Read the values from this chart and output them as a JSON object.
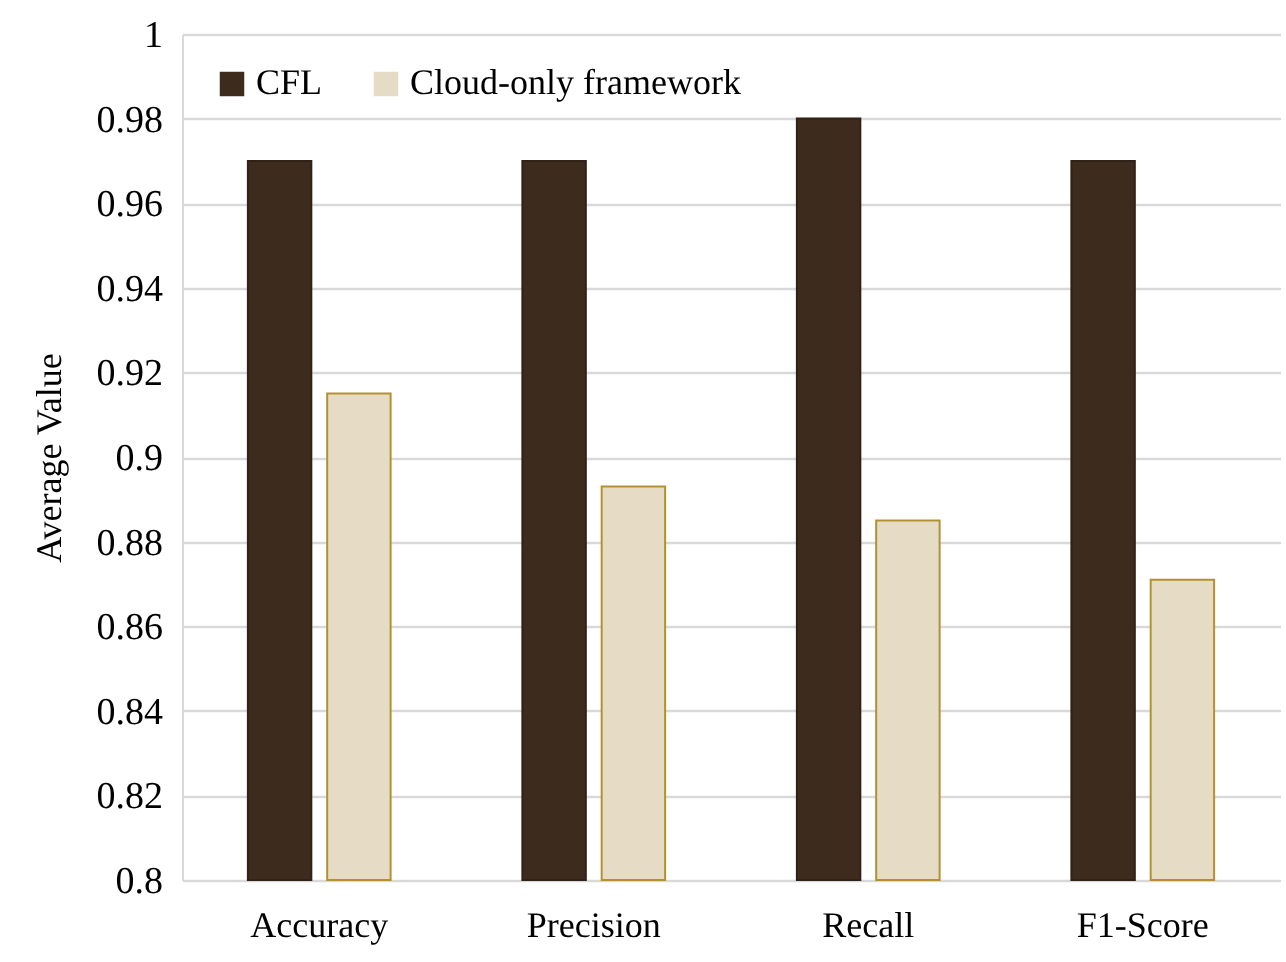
{
  "chart_data": {
    "type": "bar",
    "ylabel": "Average Value",
    "categories": [
      "Accuracy",
      "Precision",
      "Recall",
      "F1-Score"
    ],
    "series": [
      {
        "name": "CFL",
        "color": "#3d2b1d",
        "values": [
          0.97,
          0.97,
          0.98,
          0.97
        ]
      },
      {
        "name": "Cloud-only framework",
        "color": "#e6dcc6",
        "values": [
          0.915,
          0.893,
          0.885,
          0.871
        ]
      }
    ],
    "ylim": [
      0.8,
      1
    ],
    "yticks": [
      0.8,
      0.82,
      0.84,
      0.86,
      0.88,
      0.9,
      0.92,
      0.94,
      0.96,
      0.98,
      1
    ],
    "grid": "y",
    "legend": "top left"
  }
}
